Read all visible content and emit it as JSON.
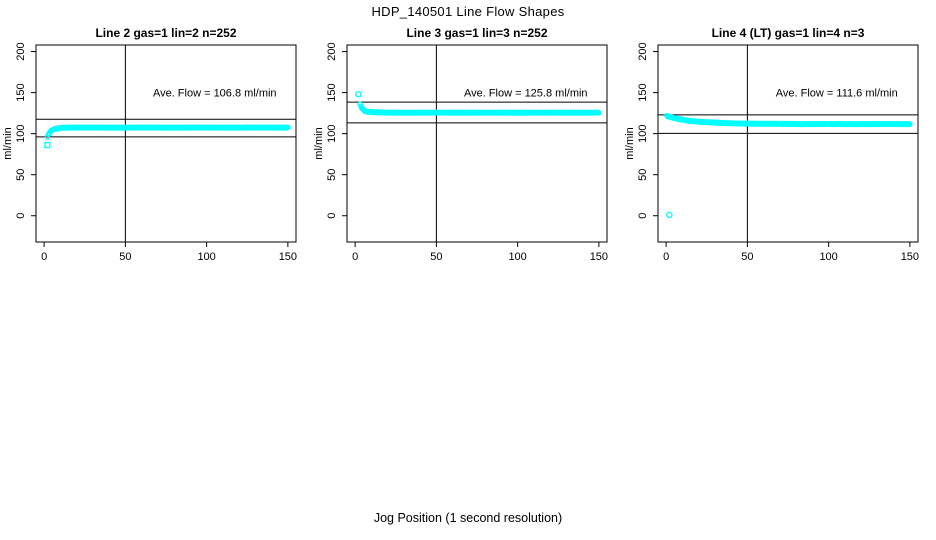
{
  "header": {
    "title": "HDP_140501  Line Flow Shapes"
  },
  "footer": {
    "xlabel": "Jog Position (1 second resolution)"
  },
  "colors": {
    "marker": "#00FFFF",
    "axis": "#000000",
    "background": "#FFFFFF"
  },
  "chart_data": [
    {
      "type": "scatter",
      "title": "Line 2 gas=1 lin=2 n=252",
      "annotation": "Ave. Flow =  106.8  ml/min",
      "ave_flow": 106.8,
      "n_label": 252,
      "ylabel": "ml/min",
      "xticks": [
        0,
        50,
        100,
        150
      ],
      "yticks": [
        0,
        50,
        100,
        150,
        200
      ],
      "xlim": [
        -5,
        155
      ],
      "ylim": [
        -32,
        208
      ],
      "vline_x": 50,
      "hlines": [
        117.5,
        96.1
      ],
      "marker_color": "#00FFFF",
      "outliers": [
        {
          "x": 2,
          "y": 86,
          "marker": "square"
        }
      ],
      "x_start": 2,
      "x_end": 150,
      "n_markers": 250,
      "curve_anchors": [
        [
          2,
          96
        ],
        [
          3,
          100.5
        ],
        [
          4,
          103
        ],
        [
          5,
          104.5
        ],
        [
          7,
          106
        ],
        [
          10,
          107
        ],
        [
          15,
          107.4
        ],
        [
          150,
          107.4
        ]
      ],
      "annot_pos": {
        "x": 105,
        "y": 150
      }
    },
    {
      "type": "scatter",
      "title": "Line 3 gas=1 lin=3 n=252",
      "annotation": "Ave. Flow =  125.8  ml/min",
      "ave_flow": 125.8,
      "n_label": 252,
      "ylabel": "ml/min",
      "xticks": [
        0,
        50,
        100,
        150
      ],
      "yticks": [
        0,
        50,
        100,
        150,
        200
      ],
      "xlim": [
        -5,
        155
      ],
      "ylim": [
        -32,
        208
      ],
      "vline_x": 50,
      "hlines": [
        138.4,
        113.2
      ],
      "marker_color": "#00FFFF",
      "outliers": [
        {
          "x": 2,
          "y": 148,
          "marker": "circle"
        }
      ],
      "x_start": 3,
      "x_end": 150,
      "n_markers": 250,
      "curve_anchors": [
        [
          3,
          135.5
        ],
        [
          4,
          131.5
        ],
        [
          5,
          129
        ],
        [
          6,
          127.5
        ],
        [
          8,
          126.5
        ],
        [
          12,
          126
        ],
        [
          20,
          125.6
        ],
        [
          150,
          125.6
        ]
      ],
      "annot_pos": {
        "x": 105,
        "y": 150
      }
    },
    {
      "type": "scatter",
      "title": "Line 4 (LT) gas=1 lin=4 n=3",
      "annotation": "Ave. Flow =  111.6  ml/min",
      "ave_flow": 111.6,
      "n_label": 3,
      "ylabel": "ml/min",
      "xticks": [
        0,
        50,
        100,
        150
      ],
      "yticks": [
        0,
        50,
        100,
        150,
        200
      ],
      "xlim": [
        -5,
        155
      ],
      "ylim": [
        -32,
        208
      ],
      "vline_x": 50,
      "hlines": [
        122.8,
        100.4
      ],
      "marker_color": "#00FFFF",
      "outliers": [
        {
          "x": 2,
          "y": 1,
          "marker": "circle"
        }
      ],
      "x_start": 0.5,
      "x_end": 150,
      "n_markers": 250,
      "curve_anchors": [
        [
          0.5,
          121.5
        ],
        [
          3,
          120
        ],
        [
          6,
          118.5
        ],
        [
          10,
          117
        ],
        [
          15,
          115.5
        ],
        [
          22,
          114.3
        ],
        [
          30,
          113.4
        ],
        [
          45,
          112.4
        ],
        [
          60,
          112
        ],
        [
          90,
          111.7
        ],
        [
          150,
          111.7
        ]
      ],
      "annot_pos": {
        "x": 105,
        "y": 150
      }
    }
  ]
}
